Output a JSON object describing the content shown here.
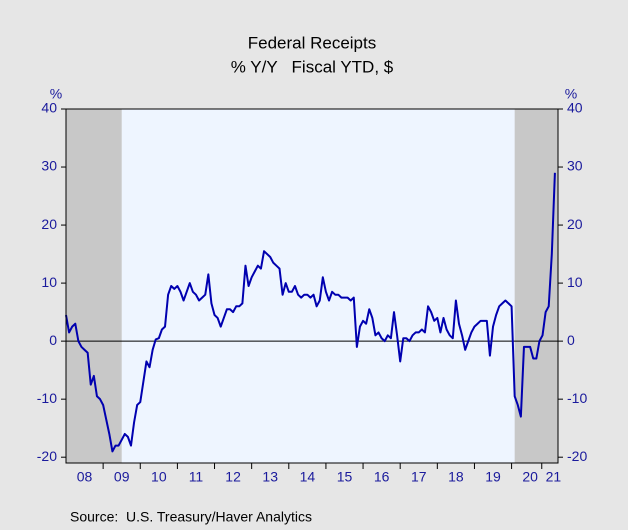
{
  "chart_data": {
    "type": "line",
    "title": "Federal Receipts",
    "subtitle": "% Y/Y   Fiscal YTD, $",
    "ylabel": "%",
    "y2label": "%",
    "source": "Source:  U.S. Treasury/Haver Analytics",
    "series": [
      {
        "name": "Federal Receipts",
        "color": "#0000b0",
        "values": [
          4.5,
          1.5,
          2.5,
          3,
          0,
          -1,
          -1.5,
          -2,
          -7.5,
          -6,
          -9.5,
          -10,
          -11,
          -13.5,
          -16,
          -19,
          -18,
          -18,
          -17,
          -16,
          -16.5,
          -18,
          -14,
          -11,
          -10.5,
          -7,
          -3.5,
          -4.5,
          -1.5,
          0.3,
          0.5,
          2,
          2.5,
          8,
          9.5,
          9,
          9.5,
          8.5,
          7,
          8.5,
          10,
          8.5,
          8,
          7,
          7.5,
          8,
          11.5,
          6.5,
          4.5,
          4,
          2.5,
          4,
          5.5,
          5.5,
          5,
          6,
          6,
          6.5,
          13,
          9.5,
          11,
          12,
          13,
          12.5,
          15.5,
          15,
          14.5,
          13.5,
          13,
          12.5,
          8,
          10,
          8.5,
          8.5,
          9.5,
          8,
          7.5,
          8,
          8,
          7.5,
          8,
          6,
          7,
          11,
          8.5,
          7,
          8.5,
          8,
          8,
          7.5,
          7.5,
          7.5,
          7,
          7.5,
          -1,
          2.5,
          3.5,
          3,
          5.5,
          4,
          1,
          1.5,
          0.5,
          0,
          1,
          0.5,
          5,
          1,
          -3.5,
          0.5,
          0.5,
          0,
          1,
          1.5,
          1.5,
          2,
          1.5,
          6,
          5,
          3.5,
          4,
          1.5,
          4,
          2,
          1,
          0.5,
          7,
          3,
          1,
          -1.5,
          0,
          1.5,
          2.5,
          3,
          3.5,
          3.5,
          3.5,
          -2.5,
          2.5,
          4.5,
          6,
          6.5,
          7,
          6.5,
          6,
          -9.5,
          -11,
          -13,
          -1,
          -1,
          -1,
          -3,
          -3,
          0,
          1,
          5,
          6,
          15,
          29
        ]
      }
    ],
    "xlim": [
      0,
      159
    ],
    "xticks": [
      {
        "value": 6,
        "label": "08"
      },
      {
        "value": 18,
        "label": "09"
      },
      {
        "value": 30,
        "label": "10"
      },
      {
        "value": 42,
        "label": "11"
      },
      {
        "value": 54,
        "label": "12"
      },
      {
        "value": 66,
        "label": "13"
      },
      {
        "value": 78,
        "label": "14"
      },
      {
        "value": 90,
        "label": "15"
      },
      {
        "value": 102,
        "label": "16"
      },
      {
        "value": 114,
        "label": "17"
      },
      {
        "value": 126,
        "label": "18"
      },
      {
        "value": 138,
        "label": "19"
      },
      {
        "value": 150,
        "label": "20"
      },
      {
        "value": 157.5,
        "label": "21"
      }
    ],
    "ylim": [
      -21,
      40
    ],
    "yticks": [
      -20,
      -10,
      0,
      10,
      20,
      30,
      40
    ],
    "y2lim": [
      -21,
      40
    ],
    "y2ticks": [
      -20,
      -10,
      0,
      10,
      20,
      30,
      40
    ],
    "shading": [
      [
        0,
        18
      ],
      [
        145,
        159
      ]
    ],
    "shading_color": "#c8c8c8",
    "plot_background": "#eef5ff",
    "zero_line": true
  }
}
